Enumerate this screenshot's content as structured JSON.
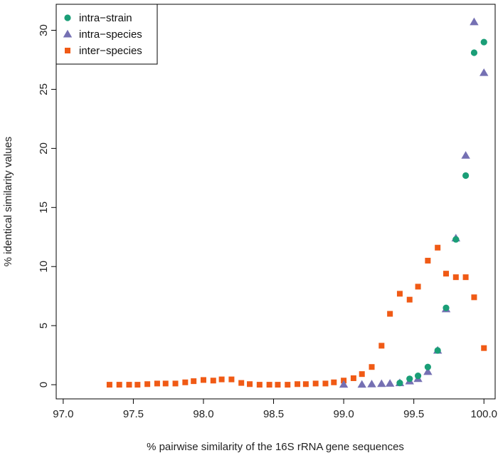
{
  "chart_data": {
    "type": "scatter",
    "title": "",
    "xlabel": "% pairwise similarity of the 16S rRNA gene sequences",
    "ylabel": "% identical similarity values",
    "xlim": [
      96.95,
      100.08
    ],
    "ylim": [
      -1.2,
      32.2
    ],
    "xticks": [
      97.0,
      97.5,
      98.0,
      98.5,
      99.0,
      99.5,
      100.0
    ],
    "xtick_labels": [
      "97.0",
      "97.5",
      "98.0",
      "98.5",
      "99.0",
      "99.5",
      "100.0"
    ],
    "yticks": [
      0,
      5,
      10,
      15,
      20,
      25,
      30
    ],
    "ytick_labels": [
      "0",
      "5",
      "10",
      "15",
      "20",
      "25",
      "30"
    ],
    "grid": false,
    "legend_position": "top-left",
    "series": [
      {
        "name": "intra−strain",
        "marker": "circle",
        "color": "#1a9e77",
        "points": [
          [
            99.4,
            0.15
          ],
          [
            99.47,
            0.5
          ],
          [
            99.53,
            0.75
          ],
          [
            99.6,
            1.5
          ],
          [
            99.67,
            2.9
          ],
          [
            99.73,
            6.5
          ],
          [
            99.8,
            12.3
          ],
          [
            99.87,
            17.7
          ],
          [
            99.93,
            28.1
          ],
          [
            100.0,
            29.0
          ]
        ]
      },
      {
        "name": "intra−species",
        "marker": "triangle",
        "color": "#7570b3",
        "points": [
          [
            99.0,
            0.02
          ],
          [
            99.13,
            0.02
          ],
          [
            99.2,
            0.05
          ],
          [
            99.27,
            0.08
          ],
          [
            99.33,
            0.1
          ],
          [
            99.4,
            0.15
          ],
          [
            99.47,
            0.3
          ],
          [
            99.53,
            0.5
          ],
          [
            99.6,
            1.1
          ],
          [
            99.67,
            2.9
          ],
          [
            99.73,
            6.4
          ],
          [
            99.8,
            12.4
          ],
          [
            99.87,
            19.4
          ],
          [
            99.93,
            30.7
          ],
          [
            100.0,
            26.4
          ]
        ]
      },
      {
        "name": "inter−species",
        "marker": "square",
        "color": "#f05a15",
        "points": [
          [
            97.33,
            0.0
          ],
          [
            97.4,
            0.0
          ],
          [
            97.47,
            0.0
          ],
          [
            97.53,
            0.0
          ],
          [
            97.6,
            0.05
          ],
          [
            97.67,
            0.1
          ],
          [
            97.73,
            0.1
          ],
          [
            97.8,
            0.1
          ],
          [
            97.87,
            0.2
          ],
          [
            97.93,
            0.3
          ],
          [
            98.0,
            0.4
          ],
          [
            98.07,
            0.35
          ],
          [
            98.13,
            0.45
          ],
          [
            98.2,
            0.45
          ],
          [
            98.27,
            0.15
          ],
          [
            98.33,
            0.05
          ],
          [
            98.4,
            0.0
          ],
          [
            98.47,
            0.0
          ],
          [
            98.53,
            0.0
          ],
          [
            98.6,
            0.0
          ],
          [
            98.67,
            0.05
          ],
          [
            98.73,
            0.05
          ],
          [
            98.8,
            0.1
          ],
          [
            98.87,
            0.1
          ],
          [
            98.93,
            0.2
          ],
          [
            99.0,
            0.35
          ],
          [
            99.07,
            0.55
          ],
          [
            99.13,
            0.9
          ],
          [
            99.2,
            1.5
          ],
          [
            99.27,
            3.3
          ],
          [
            99.33,
            6.0
          ],
          [
            99.4,
            7.7
          ],
          [
            99.47,
            7.2
          ],
          [
            99.53,
            8.3
          ],
          [
            99.6,
            10.5
          ],
          [
            99.67,
            11.6
          ],
          [
            99.73,
            9.4
          ],
          [
            99.8,
            9.1
          ],
          [
            99.87,
            9.1
          ],
          [
            99.93,
            7.4
          ],
          [
            100.0,
            3.1
          ]
        ]
      }
    ]
  }
}
